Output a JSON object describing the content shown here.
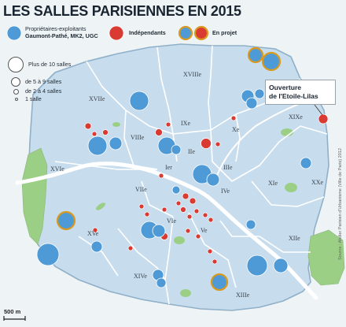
{
  "title": "LES SALLES PARISIENNES EN 2015",
  "legend": {
    "owners_label_1": "Propriétaires-exploitants",
    "owners_label_2": "Gaumont-Pathé, MK2, UGC",
    "independents_label": "Indépendants",
    "projects_label": "En projet",
    "size_1": "Plus de 10 salles",
    "size_2": "de 5 à 9 salles",
    "size_3": "de 2 à 4 salles",
    "size_4": "1 salle"
  },
  "colors": {
    "owner": "#4e9ad6",
    "independent": "#d93a32",
    "project_ring": "#d99a1e",
    "river": "#ffffff",
    "paris_fill": "#c7dced",
    "green": "#9bcf86"
  },
  "callout": {
    "line1": "Ouverture",
    "line2": "de l'Etoile-Lilas"
  },
  "arrondissements": [
    {
      "id": "i",
      "label": "Ier"
    },
    {
      "id": "ii",
      "label": "IIe"
    },
    {
      "id": "iii",
      "label": "IIIe"
    },
    {
      "id": "iv",
      "label": "IVe"
    },
    {
      "id": "v",
      "label": "Ve"
    },
    {
      "id": "vi",
      "label": "VIe"
    },
    {
      "id": "vii",
      "label": "VIIe"
    },
    {
      "id": "viii",
      "label": "VIIIe"
    },
    {
      "id": "ix",
      "label": "IXe"
    },
    {
      "id": "x",
      "label": "Xe"
    },
    {
      "id": "xi",
      "label": "XIe"
    },
    {
      "id": "xii",
      "label": "XIIe"
    },
    {
      "id": "xiii",
      "label": "XIIIe"
    },
    {
      "id": "xiv",
      "label": "XIVe"
    },
    {
      "id": "xv",
      "label": "XVe"
    },
    {
      "id": "xvi",
      "label": "XVIe"
    },
    {
      "id": "xvii",
      "label": "XVIIe"
    },
    {
      "id": "xviii",
      "label": "XVIIIe"
    },
    {
      "id": "xix",
      "label": "XIXe"
    },
    {
      "id": "xx",
      "label": "XXe"
    }
  ],
  "scale_label": "500 m",
  "credit": "Source : Atelier Parisien d'Urbanisme (Ville de Paris) 2012"
}
